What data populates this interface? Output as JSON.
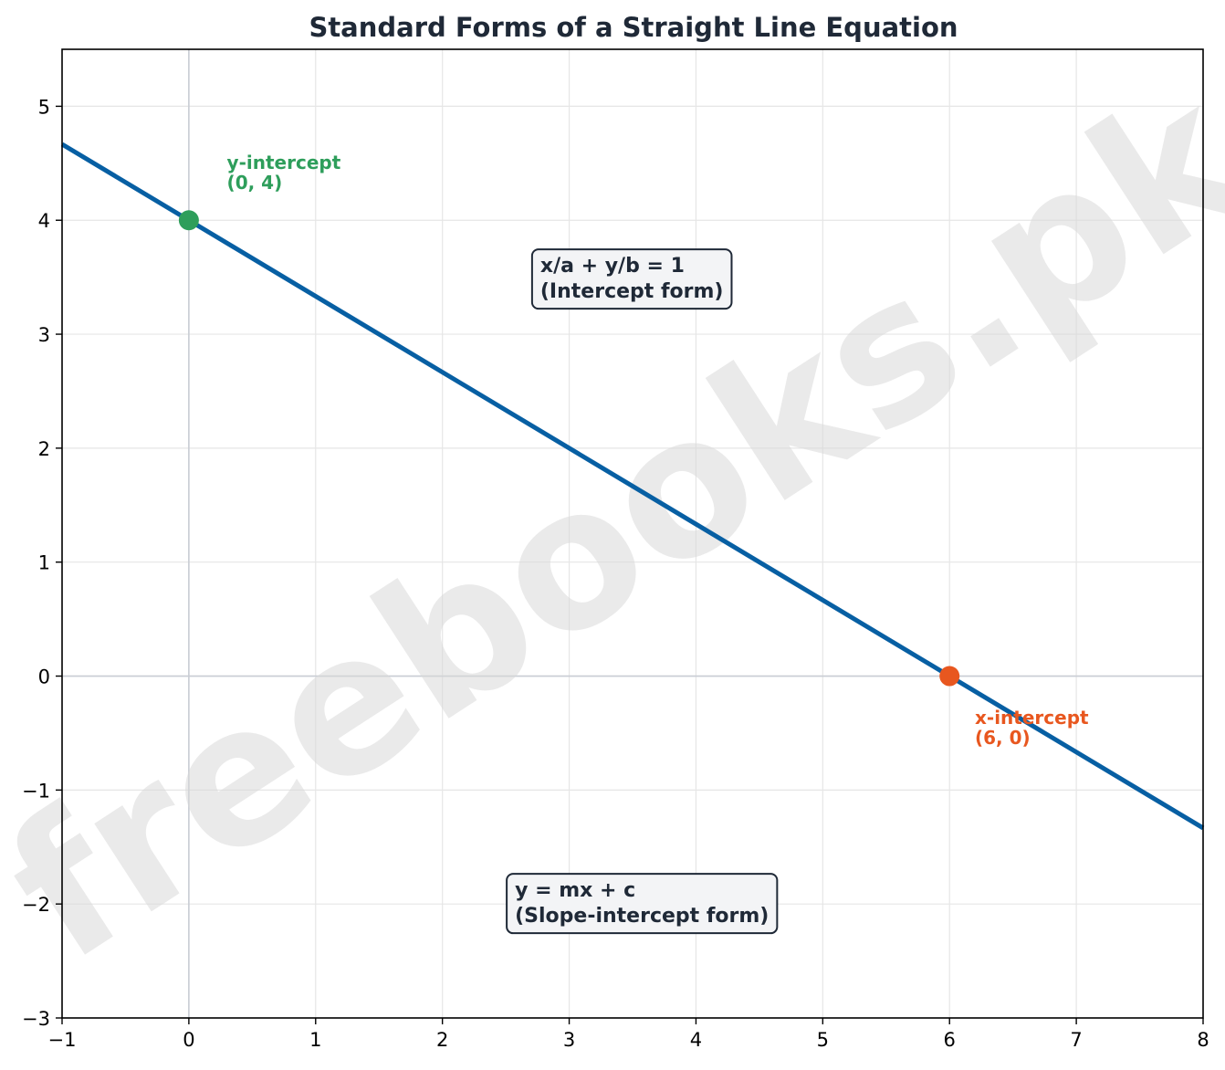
{
  "chart_data": {
    "type": "line",
    "title": "Standard Forms of a Straight Line Equation",
    "xlabel": "",
    "ylabel": "",
    "xlim": [
      -1,
      8
    ],
    "ylim": [
      -3,
      5.5
    ],
    "xticks": [
      -1,
      0,
      1,
      2,
      3,
      4,
      5,
      6,
      7,
      8
    ],
    "xtick_labels": [
      "−1",
      "0",
      "1",
      "2",
      "3",
      "4",
      "5",
      "6",
      "7",
      "8"
    ],
    "yticks": [
      -3,
      -2,
      -1,
      0,
      1,
      2,
      3,
      4,
      5
    ],
    "ytick_labels": [
      "−3",
      "−2",
      "−1",
      "0",
      "1",
      "2",
      "3",
      "4",
      "5"
    ],
    "grid": true,
    "series": [
      {
        "x": [
          -1,
          8
        ],
        "y": [
          4.6667,
          -1.3333
        ],
        "color": "#075fa3"
      }
    ],
    "points": [
      {
        "x": 0,
        "y": 4,
        "color": "#2e9e5b",
        "label_lines": [
          "y-intercept",
          "(0, 4)"
        ],
        "label_x": 0.3,
        "label_y": 4.45
      },
      {
        "x": 6,
        "y": 0,
        "color": "#e8571f",
        "label_lines": [
          "x-intercept",
          "(6, 0)"
        ],
        "label_x": 6.2,
        "label_y": -0.42
      }
    ],
    "text_boxes": [
      {
        "lines": [
          "x/a + y/b = 1",
          "(Intercept form)"
        ],
        "x": 2.7,
        "y": 3.48
      },
      {
        "lines": [
          "y = mx + c",
          "(Slope-intercept form)"
        ],
        "x": 2.5,
        "y": -2.0
      }
    ],
    "watermark": "freebooks.pk"
  }
}
